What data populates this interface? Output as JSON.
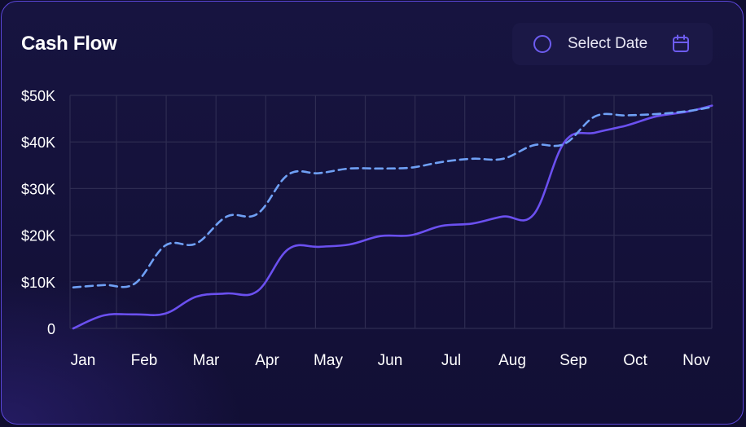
{
  "card": {
    "title": "Cash Flow"
  },
  "date_picker": {
    "label": "Select Date",
    "icon": "calendar-icon"
  },
  "colors": {
    "accent": "#6d5cf0",
    "solid_line": "#6b50f0",
    "dashed_line": "#6fa0f5",
    "grid": "#2e2c52",
    "border": "#5a46d8"
  },
  "chart_data": {
    "type": "line",
    "categories": [
      "Jan",
      "Feb",
      "Mar",
      "Apr",
      "May",
      "Jun",
      "Jul",
      "Aug",
      "Sep",
      "Oct",
      "Nov"
    ],
    "ytick_labels": [
      "0",
      "$10K",
      "$20K",
      "$30K",
      "$40K",
      "$50K"
    ],
    "ylim": [
      0,
      50000
    ],
    "grid": true,
    "series": [
      {
        "style": "solid",
        "points": [
          [
            0,
            0
          ],
          [
            0.5,
            2800
          ],
          [
            1,
            3000
          ],
          [
            1.5,
            3200
          ],
          [
            2,
            6800
          ],
          [
            2.5,
            7500
          ],
          [
            3,
            8000
          ],
          [
            3.5,
            17000
          ],
          [
            4,
            17500
          ],
          [
            4.5,
            18000
          ],
          [
            5,
            19800
          ],
          [
            5.5,
            20000
          ],
          [
            6,
            22000
          ],
          [
            6.5,
            22500
          ],
          [
            7,
            24000
          ],
          [
            7.5,
            24500
          ],
          [
            8,
            40000
          ],
          [
            8.5,
            42000
          ],
          [
            9,
            43500
          ],
          [
            9.5,
            45500
          ],
          [
            10,
            46500
          ],
          [
            10.4,
            47800
          ]
        ]
      },
      {
        "style": "dashed",
        "points": [
          [
            0,
            8800
          ],
          [
            0.5,
            9300
          ],
          [
            1,
            9600
          ],
          [
            1.5,
            17800
          ],
          [
            2,
            18200
          ],
          [
            2.5,
            24000
          ],
          [
            3,
            24600
          ],
          [
            3.5,
            33000
          ],
          [
            4,
            33300
          ],
          [
            4.5,
            34300
          ],
          [
            5,
            34300
          ],
          [
            5.5,
            34500
          ],
          [
            6,
            35700
          ],
          [
            6.5,
            36400
          ],
          [
            7,
            36400
          ],
          [
            7.5,
            39300
          ],
          [
            8,
            39600
          ],
          [
            8.5,
            45500
          ],
          [
            9,
            45700
          ],
          [
            9.5,
            46000
          ],
          [
            10,
            46600
          ],
          [
            10.4,
            47500
          ]
        ]
      }
    ]
  }
}
